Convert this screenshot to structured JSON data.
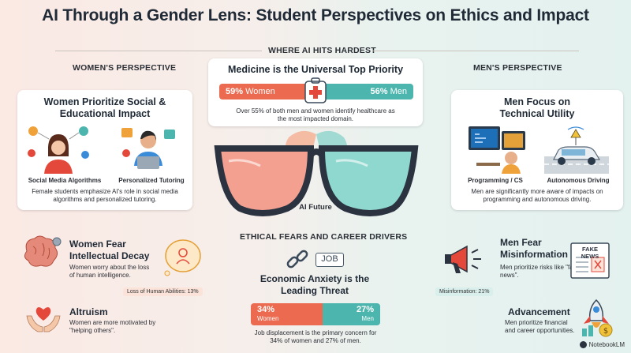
{
  "title": "AI Through a Gender Lens: Student Perspectives on Ethics and Impact",
  "sections": {
    "hardest": "WHERE AI HITS HARDEST",
    "womens": "WOMEN'S PERSPECTIVE",
    "mens": "MEN'S PERSPECTIVE",
    "ethical": "ETHICAL FEARS AND CAREER DRIVERS"
  },
  "medicine": {
    "title": "Medicine is the Universal Top Priority",
    "women_pct": "59%",
    "women_label": "Women",
    "men_pct": "56%",
    "men_label": "Men",
    "women_value": 59,
    "men_value": 56,
    "desc": "Over 55% of both men and women identify healthcare as the most impacted domain."
  },
  "women_card": {
    "title": "Women Prioritize Social & Educational Impact",
    "item1": "Social Media Algorithms",
    "item2": "Personalized Tutoring",
    "desc": "Female students emphasize AI's role in social media algorithms and personalized tutoring."
  },
  "men_card": {
    "title": "Men Focus on Technical Utility",
    "item1": "Programming / CS",
    "item2": "Autonomous Driving",
    "desc": "Men are significantly more aware of impacts on programming and autonomous driving."
  },
  "glasses_label": "AI Future",
  "intellectual": {
    "title": "Women Fear Intellectual Decay",
    "desc": "Women worry about the loss of human intelligence.",
    "stat": "Loss of Human Abilities: 13%"
  },
  "altruism": {
    "title": "Altruism",
    "desc": "Women are more motivated by \"helping others\"."
  },
  "economic": {
    "job_tag": "JOB",
    "title": "Economic Anxiety is the Leading Threat",
    "women_pct": "34%",
    "women_label": "Women",
    "men_pct": "27%",
    "men_label": "Men",
    "women_value": 34,
    "men_value": 27,
    "desc": "Job displacement is the primary concern for 34% of women and 27% of men."
  },
  "misinformation": {
    "title": "Men Fear Misinformation",
    "desc": "Men prioritize risks like \"fake news\".",
    "stat": "Misinformation: 21%",
    "newspaper": "FAKE NEWS"
  },
  "advancement": {
    "title": "Advancement",
    "desc": "Men prioritize financial and career opportunities."
  },
  "branding": "NotebookLM",
  "colors": {
    "women": "#ec6a4f",
    "men": "#4cb5ad"
  }
}
